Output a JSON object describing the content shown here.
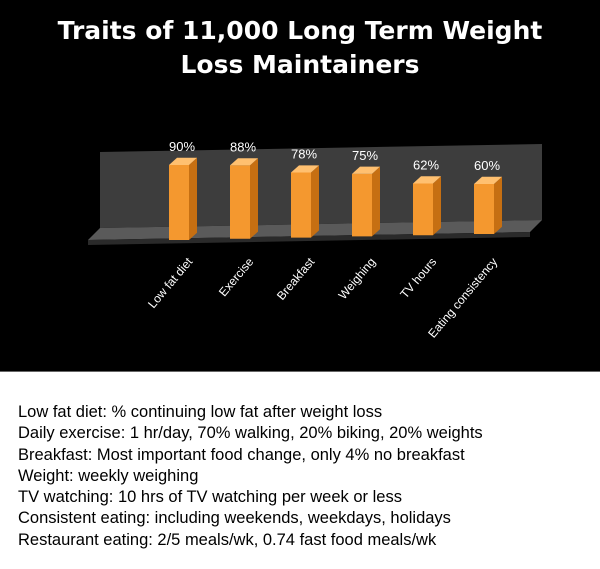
{
  "chart_data": {
    "type": "bar",
    "title_lines": [
      "Traits of 11,000 Long Term Weight",
      "Loss Maintainers"
    ],
    "categories": [
      "Low fat diet",
      "Exercise",
      "Breakfast",
      "Weighing",
      "TV hours",
      "Eating consistency"
    ],
    "values": [
      90,
      88,
      78,
      75,
      62,
      60
    ],
    "value_labels": [
      "90%",
      "88%",
      "78%",
      "75%",
      "62%",
      "60%"
    ],
    "ylim": [
      0,
      100
    ],
    "grid": false,
    "legend": "none",
    "xlabel": "",
    "ylabel": ""
  },
  "colors": {
    "background": "#000000",
    "bar_front": "#f4982f",
    "bar_side": "#c66f12",
    "bar_top": "#ffc070",
    "floor": "#5a5a5a",
    "back_wall": "#3d3d3d",
    "notes_background": "#ffffff",
    "text": "#ffffff"
  },
  "notes": [
    "Low fat diet:  % continuing low fat after weight loss",
    "Daily exercise: 1 hr/day, 70% walking, 20% biking, 20% weights",
    "Breakfast: Most important food change, only 4% no breakfast",
    "Weight: weekly weighing",
    "TV watching: 10 hrs of TV watching per week or less",
    "Consistent eating: including weekends, weekdays, holidays",
    "Restaurant eating:  2/5 meals/wk,  0.74 fast food meals/wk"
  ]
}
